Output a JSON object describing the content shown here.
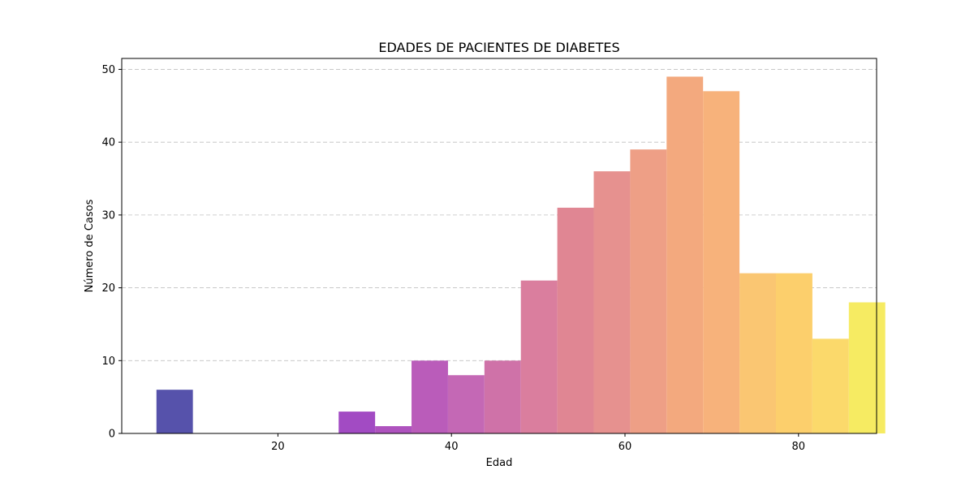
{
  "chart_data": {
    "type": "bar",
    "title": "EDADES DE PACIENTES DE DIABETES",
    "xlabel": "Edad",
    "ylabel": "Número de Casos",
    "xlim": [
      2,
      89
    ],
    "ylim": [
      0,
      51.5
    ],
    "x_ticks": [
      20,
      40,
      60,
      80
    ],
    "y_ticks": [
      0,
      10,
      20,
      30,
      40,
      50
    ],
    "grid": "y-dashed",
    "bins": [
      {
        "start": 6.0,
        "end": 10.2,
        "value": 6
      },
      {
        "start": 10.2,
        "end": 14.4,
        "value": 0
      },
      {
        "start": 14.4,
        "end": 18.6,
        "value": 0
      },
      {
        "start": 18.6,
        "end": 22.8,
        "value": 0
      },
      {
        "start": 22.8,
        "end": 27.0,
        "value": 0
      },
      {
        "start": 27.0,
        "end": 31.2,
        "value": 3
      },
      {
        "start": 31.2,
        "end": 35.4,
        "value": 1
      },
      {
        "start": 35.4,
        "end": 39.6,
        "value": 10
      },
      {
        "start": 39.6,
        "end": 43.8,
        "value": 8
      },
      {
        "start": 43.8,
        "end": 48.0,
        "value": 10
      },
      {
        "start": 48.0,
        "end": 52.2,
        "value": 21
      },
      {
        "start": 52.2,
        "end": 56.4,
        "value": 31
      },
      {
        "start": 56.4,
        "end": 60.6,
        "value": 36
      },
      {
        "start": 60.6,
        "end": 64.8,
        "value": 39
      },
      {
        "start": 64.8,
        "end": 69.0,
        "value": 49
      },
      {
        "start": 69.0,
        "end": 73.2,
        "value": 47
      },
      {
        "start": 73.2,
        "end": 77.4,
        "value": 22
      },
      {
        "start": 77.4,
        "end": 81.6,
        "value": 22
      },
      {
        "start": 81.6,
        "end": 85.8,
        "value": 13
      },
      {
        "start": 85.8,
        "end": 90.0,
        "value": 18
      }
    ],
    "colors": [
      "#5652ab",
      "#67459f",
      "#7a46b0",
      "#8c47bb",
      "#9a48c0",
      "#a24bc3",
      "#ae53be",
      "#ba5cba",
      "#c468b5",
      "#cf72a8",
      "#da7e9e",
      "#e08693",
      "#e6918f",
      "#ee9f86",
      "#f3a97e",
      "#f7b27b",
      "#fac672",
      "#fccf6c",
      "#fbd96b",
      "#f6eb62"
    ]
  }
}
